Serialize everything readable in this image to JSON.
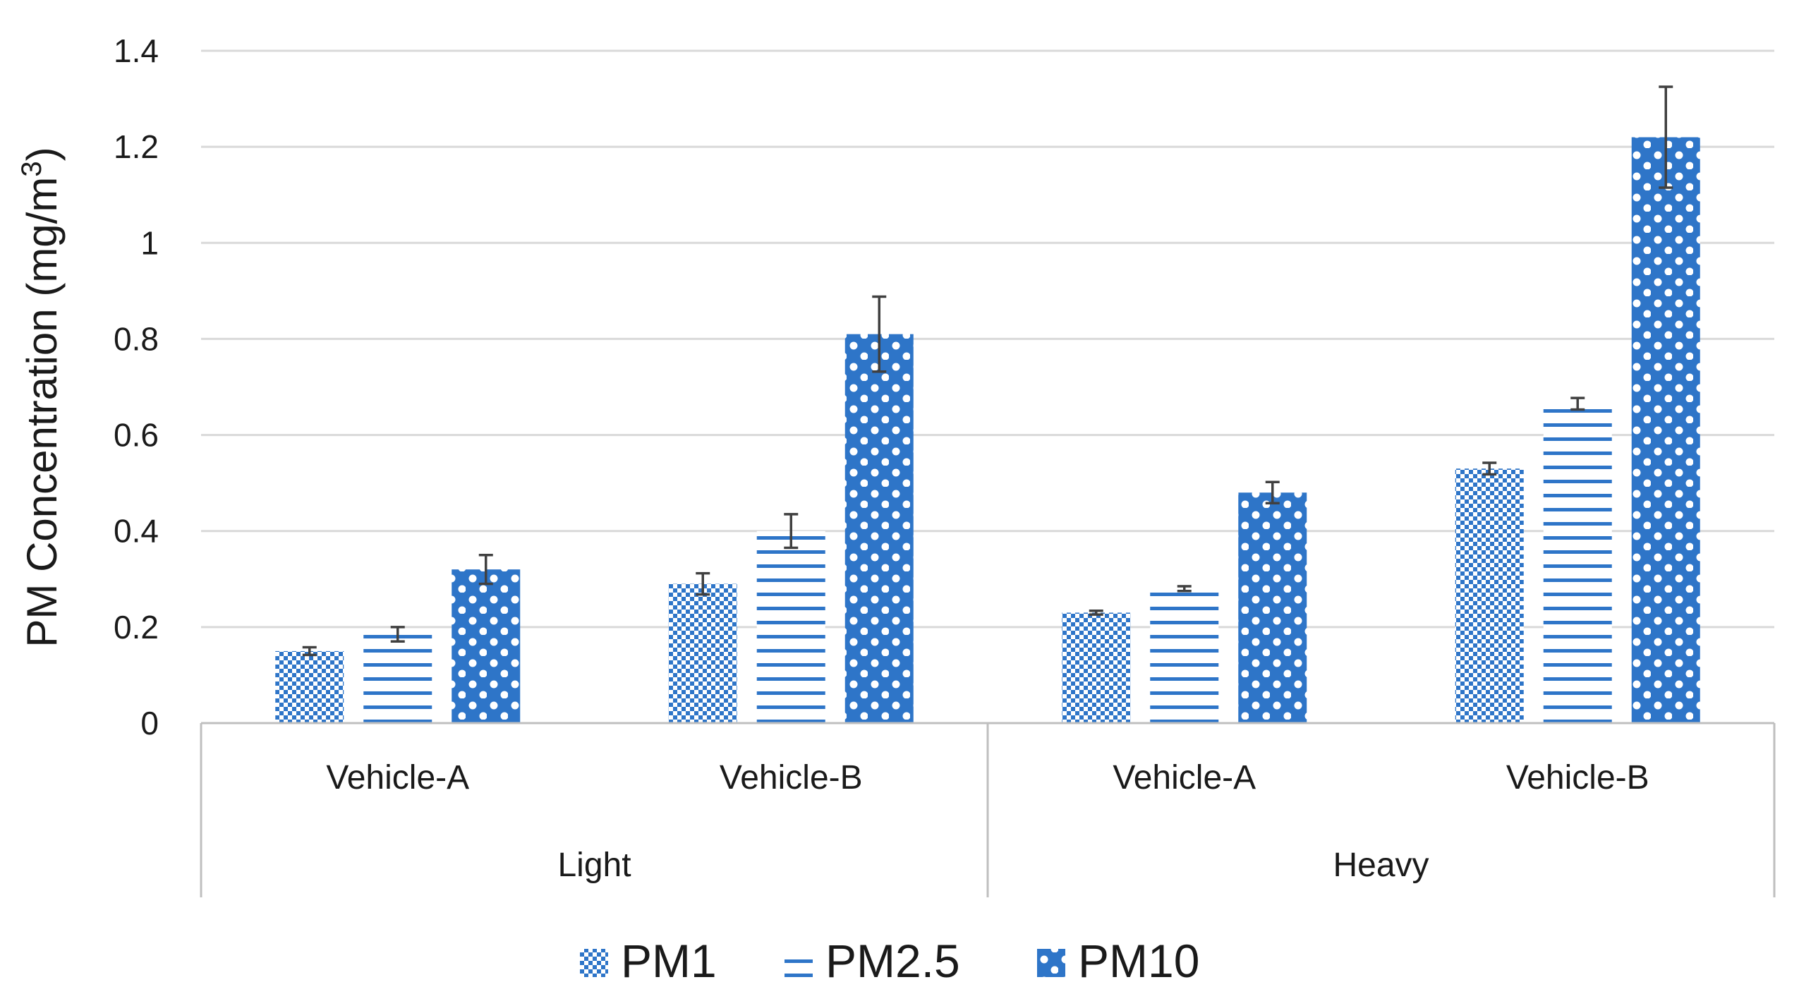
{
  "chart_data": {
    "type": "bar",
    "ylabel": "PM Concentration (mg/m",
    "ylabel_sup": "3",
    "ylabel_end": ")",
    "ylim": [
      0,
      1.4
    ],
    "yticks": [
      "0",
      "0.2",
      "0.4",
      "0.6",
      "0.8",
      "1",
      "1.2",
      "1.4"
    ],
    "grid": true,
    "legend_position": "bottom",
    "groups": [
      {
        "label": "Light",
        "categories": [
          "Vehicle-A",
          "Vehicle-B"
        ]
      },
      {
        "label": "Heavy",
        "categories": [
          "Vehicle-A",
          "Vehicle-B"
        ]
      }
    ],
    "categories": [
      "Vehicle-A",
      "Vehicle-B",
      "Vehicle-A",
      "Vehicle-B"
    ],
    "series": [
      {
        "name": "PM1",
        "pattern": "checker",
        "values": [
          0.15,
          0.29,
          0.23,
          0.53
        ],
        "errors": [
          0.008,
          0.022,
          0.004,
          0.012
        ]
      },
      {
        "name": "PM2.5",
        "pattern": "horizontal-lines",
        "values": [
          0.185,
          0.4,
          0.28,
          0.665
        ],
        "errors": [
          0.015,
          0.035,
          0.005,
          0.012
        ]
      },
      {
        "name": "PM10",
        "pattern": "circles",
        "values": [
          0.32,
          0.81,
          0.48,
          1.22
        ],
        "errors": [
          0.03,
          0.078,
          0.022,
          0.105
        ]
      }
    ],
    "colors": {
      "bar": "#2e75c8",
      "error_bar": "#404040",
      "grid": "#d9d9d9"
    }
  }
}
